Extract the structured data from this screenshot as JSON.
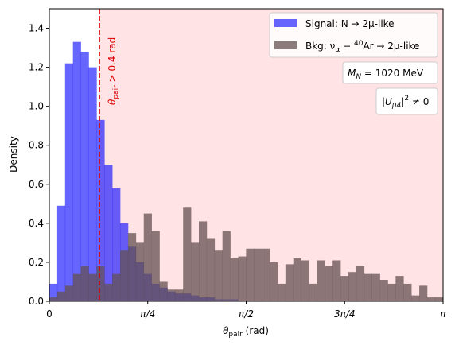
{
  "chart_data": {
    "type": "histogram",
    "xlabel": "θ",
    "xlabel_sub": "pair",
    "xlabel_unit": " (rad)",
    "ylabel": "Density",
    "xlim": [
      0,
      3.14159
    ],
    "ylim": [
      0,
      1.5
    ],
    "xticks": [
      {
        "value": 0,
        "label": "0"
      },
      {
        "value": 0.7854,
        "label": "π/4"
      },
      {
        "value": 1.5708,
        "label": "π/2"
      },
      {
        "value": 2.3562,
        "label": "3π/4"
      },
      {
        "value": 3.14159,
        "label": "π"
      }
    ],
    "yticks": [
      0.0,
      0.2,
      0.4,
      0.6,
      0.8,
      1.0,
      1.2,
      1.4
    ],
    "ytick_labels": [
      "0.0",
      "0.2",
      "0.4",
      "0.6",
      "0.8",
      "1.0",
      "1.2",
      "1.4"
    ],
    "bin_width": 0.0628,
    "series": [
      {
        "name": "Signal: N → 2μ-like",
        "color": "#6666ff",
        "values": [
          0.09,
          0.49,
          1.22,
          1.33,
          1.28,
          1.2,
          0.93,
          0.7,
          0.58,
          0.4,
          0.28,
          0.2,
          0.14,
          0.09,
          0.07,
          0.05,
          0.04,
          0.04,
          0.03,
          0.02,
          0.02,
          0.01,
          0.01,
          0.01,
          0,
          0,
          0,
          0,
          0,
          0,
          0,
          0,
          0,
          0,
          0,
          0,
          0,
          0,
          0,
          0,
          0,
          0,
          0,
          0,
          0,
          0,
          0,
          0,
          0,
          0
        ]
      },
      {
        "name_prefix": "Bkg: ν",
        "name_sub": "α",
        "name_mid": " − ",
        "name_sup": "40",
        "name_suffix": "Ar → 2μ-like",
        "color": "#8a7878",
        "values": [
          0.02,
          0.05,
          0.08,
          0.14,
          0.18,
          0.14,
          0.18,
          0.09,
          0.14,
          0.26,
          0.35,
          0.3,
          0.45,
          0.36,
          0.1,
          0.06,
          0.06,
          0.48,
          0.3,
          0.41,
          0.32,
          0.26,
          0.36,
          0.22,
          0.23,
          0.27,
          0.27,
          0.27,
          0.2,
          0.09,
          0.19,
          0.22,
          0.21,
          0.09,
          0.21,
          0.18,
          0.21,
          0.13,
          0.15,
          0.18,
          0.14,
          0.14,
          0.11,
          0.09,
          0.13,
          0.09,
          0.03,
          0.08,
          0.02,
          0.02
        ]
      }
    ],
    "cut_line": {
      "x": 0.4,
      "color": "#dd0000",
      "label": "θ",
      "label_sub": "pair",
      "label_tail": " > 0.4 rad"
    },
    "cut_region_color": "#ffe3e5",
    "legend_position": "top-right",
    "annotations": [
      {
        "label_main": "M",
        "label_sub": "N",
        "label_tail": " = 1020 MeV"
      },
      {
        "label_main": "|U",
        "label_sub": "μ4",
        "label_tail": "|",
        "label_sup": "2",
        "label_end": " ≠ 0"
      }
    ]
  }
}
